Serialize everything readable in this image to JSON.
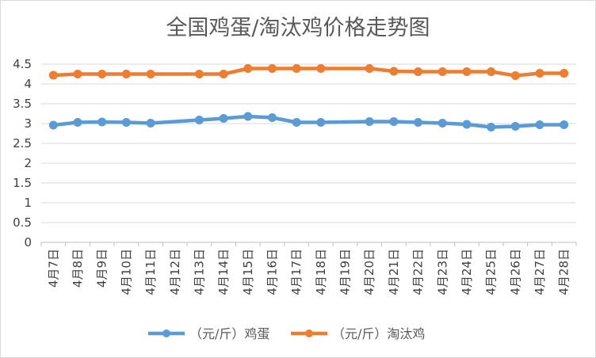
{
  "chart_data": {
    "type": "line",
    "title": "全国鸡蛋/淘汰鸡价格走势图",
    "xlabel": "",
    "ylabel": "",
    "ylim": [
      0,
      4.5
    ],
    "yticks": [
      "0",
      "0.5",
      "1",
      "1.5",
      "2",
      "2.5",
      "3",
      "3.5",
      "4",
      "4.5"
    ],
    "ytick_values": [
      0,
      0.5,
      1,
      1.5,
      2,
      2.5,
      3,
      3.5,
      4,
      4.5
    ],
    "grid": true,
    "legend_position": "bottom",
    "categories": [
      "4月7日",
      "4月8日",
      "4月9日",
      "4月10日",
      "4月11日",
      "4月12日",
      "4月13日",
      "4月14日",
      "4月15日",
      "4月16日",
      "4月17日",
      "4月18日",
      "4月19日",
      "4月20日",
      "4月21日",
      "4月22日",
      "4月23日",
      "4月24日",
      "4月25日",
      "4月26日",
      "4月27日",
      "4月28日"
    ],
    "series": [
      {
        "name": "（元/斤）鸡蛋",
        "color": "#5b9bd5",
        "values": [
          2.96,
          3.03,
          3.04,
          3.03,
          3.01,
          null,
          3.09,
          3.13,
          3.18,
          3.15,
          3.03,
          3.03,
          null,
          3.05,
          3.05,
          3.03,
          3.01,
          2.98,
          2.91,
          2.93,
          2.97,
          2.97
        ]
      },
      {
        "name": "（元/斤）淘汰鸡",
        "color": "#ed7d31",
        "values": [
          4.22,
          4.25,
          4.25,
          4.25,
          4.25,
          null,
          4.25,
          4.25,
          4.39,
          4.39,
          4.39,
          4.39,
          null,
          4.39,
          4.32,
          4.31,
          4.31,
          4.31,
          4.31,
          4.21,
          4.27,
          4.27
        ]
      }
    ]
  }
}
